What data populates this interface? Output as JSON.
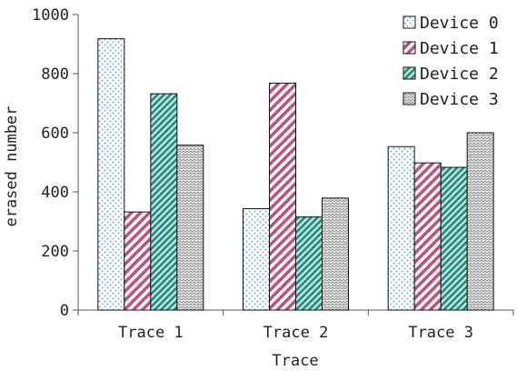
{
  "chart_data": {
    "type": "bar",
    "xlabel": "Trace",
    "ylabel": "erased number",
    "ylim": [
      0,
      1000
    ],
    "yticks": [
      0,
      200,
      400,
      600,
      800,
      1000
    ],
    "grid": false,
    "legend_position": "top-right",
    "categories": [
      "Trace 1",
      "Trace 2",
      "Trace 3"
    ],
    "series": [
      {
        "name": "Device 0",
        "values": [
          918,
          343,
          553
        ],
        "color": "#6fa8dc",
        "pattern": "dots"
      },
      {
        "name": "Device 1",
        "values": [
          332,
          768,
          498
        ],
        "color": "#c0507a",
        "pattern": "wide-diagonal"
      },
      {
        "name": "Device 2",
        "values": [
          732,
          315,
          483
        ],
        "color": "#2a9d8f",
        "pattern": "dark-diagonal"
      },
      {
        "name": "Device 3",
        "values": [
          558,
          379,
          600
        ],
        "color": "#9e9e9e",
        "pattern": "wave"
      }
    ]
  }
}
